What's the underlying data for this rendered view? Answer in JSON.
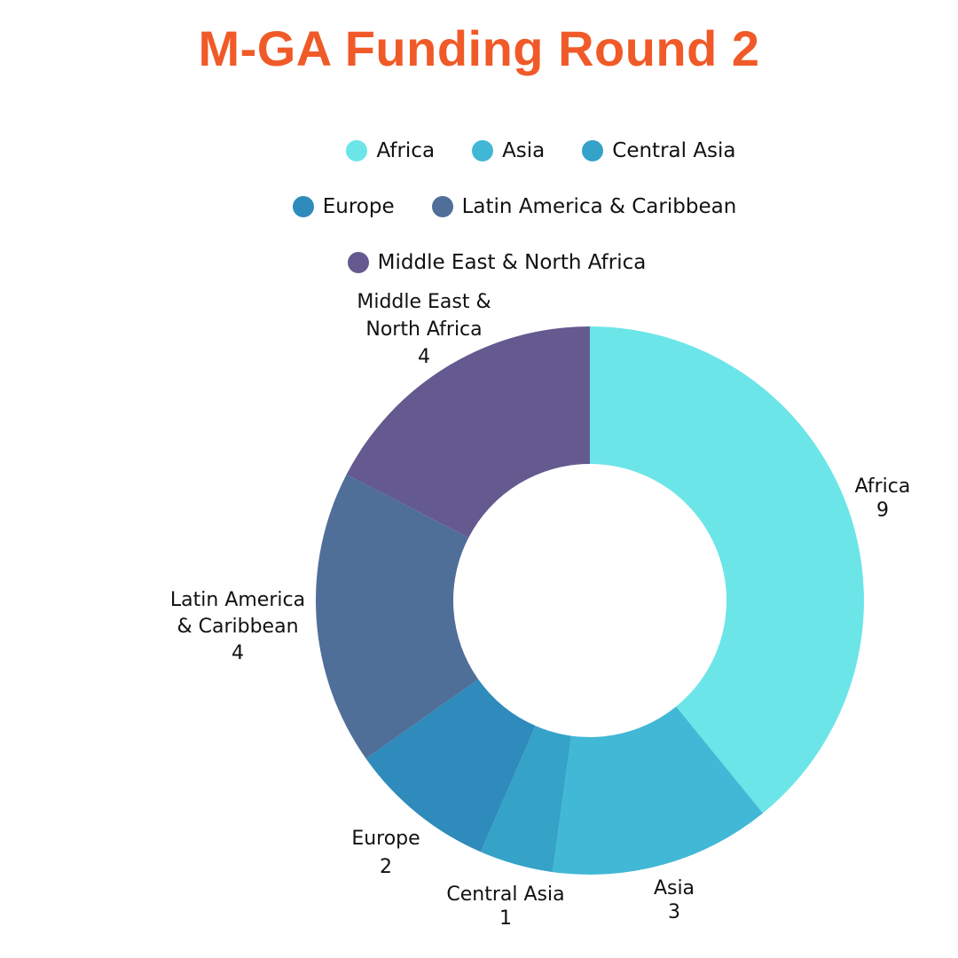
{
  "chart_data": {
    "type": "pie",
    "donut": true,
    "title": "M-GA Funding Round 2",
    "legend_position": "top",
    "categories": [
      "Africa",
      "Asia",
      "Central Asia",
      "Europe",
      "Latin America & Caribbean",
      "Middle East & North Africa"
    ],
    "values": [
      9,
      3,
      1,
      2,
      4,
      4
    ],
    "colors": [
      "#6ce5e8",
      "#41b8d5",
      "#35a2c8",
      "#2e8bbb",
      "#4f6f99",
      "#645a8f"
    ],
    "title_color": "#f05a28",
    "slice_labels": [
      {
        "lines": [
          "Africa"
        ],
        "value": "9"
      },
      {
        "lines": [
          "Asia"
        ],
        "value": "3"
      },
      {
        "lines": [
          "Central Asia"
        ],
        "value": "1"
      },
      {
        "lines": [
          "Europe"
        ],
        "value": "2"
      },
      {
        "lines": [
          "Latin America",
          "& Caribbean"
        ],
        "value": "4"
      },
      {
        "lines": [
          "Middle East &",
          "North Africa"
        ],
        "value": "4"
      }
    ]
  }
}
